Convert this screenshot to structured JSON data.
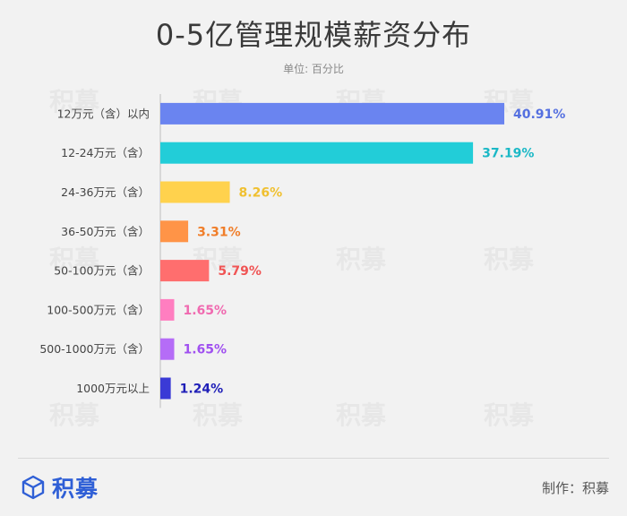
{
  "title": "0-5亿管理规模薪资分布",
  "subtitle": "单位: 百分比",
  "brand": {
    "name": "积募",
    "color": "#2f5fd6"
  },
  "credit": "制作：积募",
  "chart_data": {
    "type": "bar",
    "orientation": "horizontal",
    "title": "0-5亿管理规模薪资分布",
    "subtitle": "单位: 百分比",
    "unit": "%",
    "grid": false,
    "legend": "none",
    "xlim": [
      0,
      45
    ],
    "categories": [
      "12万元（含）以内",
      "12-24万元（含）",
      "24-36万元（含）",
      "36-50万元（含）",
      "50-100万元（含）",
      "100-500万元（含）",
      "500-1000万元（含）",
      "1000万元以上"
    ],
    "values": [
      40.91,
      37.19,
      8.26,
      3.31,
      5.79,
      1.65,
      1.65,
      1.24
    ],
    "labels": [
      "40.91%",
      "37.19%",
      "8.26%",
      "3.31%",
      "5.79%",
      "1.65%",
      "1.65%",
      "1.24%"
    ],
    "colors": [
      "#6a84f0",
      "#22cdd8",
      "#ffd24d",
      "#ff9447",
      "#ff6e6e",
      "#ff7ec0",
      "#b56cf7",
      "#3a3ad6"
    ],
    "label_colors": [
      "#5570e0",
      "#1bb8c6",
      "#f0c030",
      "#f07e2a",
      "#f05454",
      "#f06ab0",
      "#a050f0",
      "#2020b8"
    ]
  }
}
